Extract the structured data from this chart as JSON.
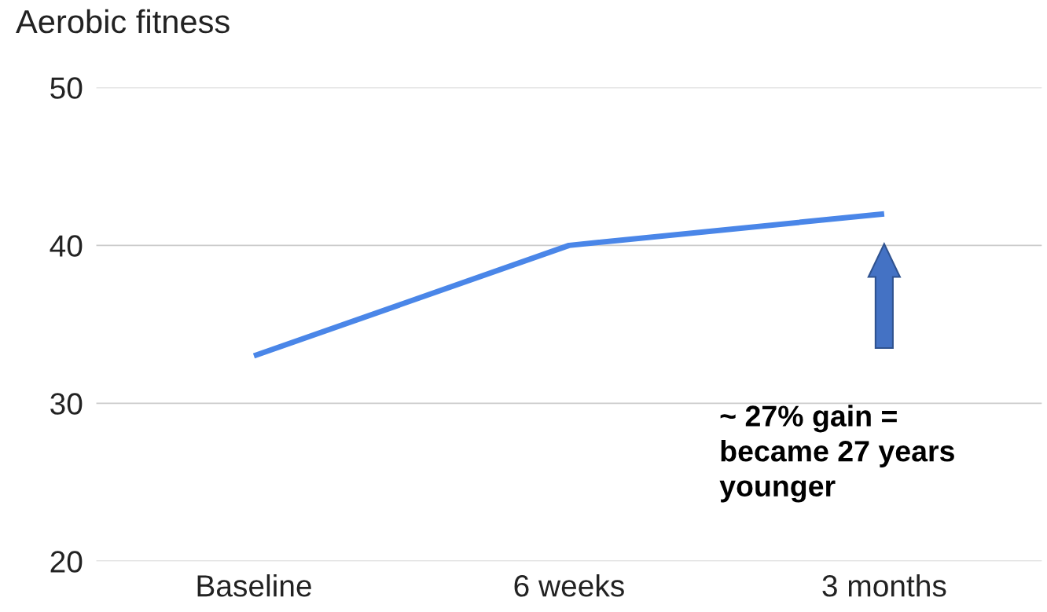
{
  "chart_data": {
    "type": "line",
    "title": "Aerobic fitness",
    "categories": [
      "Baseline",
      "6 weeks",
      "3 months"
    ],
    "series": [
      {
        "color": "#4a86e8",
        "values": [
          33,
          40,
          42
        ]
      }
    ],
    "ylim": [
      20,
      50
    ],
    "yticks": [
      20,
      30,
      40,
      50
    ],
    "grid": "y",
    "marker": "none",
    "line_style": "solid",
    "annotations": [
      "~ 27% gain =\nbecame 27 years\nyounger"
    ]
  }
}
